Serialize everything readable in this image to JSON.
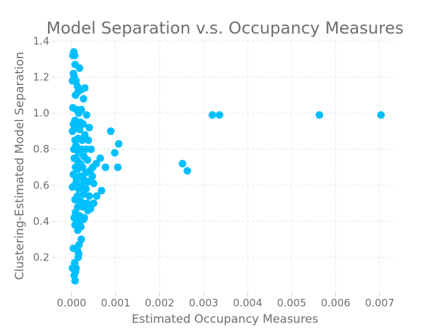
{
  "chart_data": {
    "type": "scatter",
    "title": "Model Separation v.s. Occupancy Measures",
    "xlabel": "Estimated Occupancy Measures",
    "ylabel": "Clustering-Estimated Model Separation",
    "xlim": [
      -0.00038,
      0.00735
    ],
    "ylim": [
      0.0,
      1.4
    ],
    "xticks": [
      0.0,
      0.001,
      0.002,
      0.003,
      0.004,
      0.005,
      0.006,
      0.007
    ],
    "xtick_labels": [
      "0.000",
      "0.001",
      "0.002",
      "0.003",
      "0.004",
      "0.005",
      "0.006",
      "0.007"
    ],
    "yticks": [
      0.2,
      0.4,
      0.6,
      0.8,
      1.0,
      1.2,
      1.4
    ],
    "ytick_labels": [
      "0.2",
      "0.4",
      "0.6",
      "0.8",
      "1.0",
      "1.2",
      "1.4"
    ],
    "grid": true,
    "marker_color": "#00bfff",
    "series": [
      {
        "name": "",
        "points": [
          [
            5e-05,
            1.34
          ],
          [
            7e-05,
            1.32
          ],
          [
            3e-05,
            1.32
          ],
          [
            8e-05,
            1.27
          ],
          [
            0.00018,
            1.25
          ],
          [
            4e-05,
            1.22
          ],
          [
            6e-05,
            1.2
          ],
          [
            0.0001,
            1.18
          ],
          [
            2e-05,
            1.18
          ],
          [
            0.00013,
            1.15
          ],
          [
            0.00015,
            1.12
          ],
          [
            0.0003,
            1.14
          ],
          [
            0.00021,
            1.13
          ],
          [
            9e-05,
            1.1
          ],
          [
            0.00027,
            1.08
          ],
          [
            3e-05,
            1.03
          ],
          [
            0.00011,
            1.02
          ],
          [
            0.00022,
            1.02
          ],
          [
            0.00016,
            1.0
          ],
          [
            0.00034,
            0.99
          ],
          [
            8e-05,
            0.96
          ],
          [
            0.0002,
            0.95
          ],
          [
            4e-05,
            0.94
          ],
          [
            0.00012,
            0.93
          ],
          [
            0.00026,
            0.94
          ],
          [
            7e-05,
            0.92
          ],
          [
            0.00018,
            0.91
          ],
          [
            0.0004,
            0.92
          ],
          [
            2e-05,
            0.9
          ],
          [
            0.0003,
            0.88
          ],
          [
            0.00015,
            0.86
          ],
          [
            8e-05,
            0.85
          ],
          [
            0.00024,
            0.85
          ],
          [
            0.00038,
            0.85
          ],
          [
            0.0001,
            0.82
          ],
          [
            0.00022,
            0.8
          ],
          [
            5e-05,
            0.8
          ],
          [
            0.00033,
            0.8
          ],
          [
            0.00044,
            0.8
          ],
          [
            0.00016,
            0.78
          ],
          [
            0.00028,
            0.76
          ],
          [
            0.00012,
            0.74
          ],
          [
            6e-05,
            0.75
          ],
          [
            0.0002,
            0.72
          ],
          [
            0.00036,
            0.74
          ],
          [
            0.00065,
            0.75
          ],
          [
            0.00048,
            0.7
          ],
          [
            9e-05,
            0.7
          ],
          [
            0.00025,
            0.7
          ],
          [
            0.00014,
            0.69
          ],
          [
            0.00042,
            0.68
          ],
          [
            0.00032,
            0.67
          ],
          [
            0.00056,
            0.72
          ],
          [
            4e-05,
            0.66
          ],
          [
            0.00019,
            0.65
          ],
          [
            0.00047,
            0.65
          ],
          [
            0.00011,
            0.63
          ],
          [
            0.00028,
            0.63
          ],
          [
            0.00037,
            0.62
          ],
          [
            7e-05,
            0.6
          ],
          [
            0.00023,
            0.6
          ],
          [
            0.0005,
            0.61
          ],
          [
            0.00016,
            0.58
          ],
          [
            0.00033,
            0.58
          ],
          [
            2e-05,
            0.59
          ],
          [
            0.00027,
            0.55
          ],
          [
            0.00068,
            0.57
          ],
          [
            0.00013,
            0.54
          ],
          [
            0.0004,
            0.54
          ],
          [
            0.00057,
            0.54
          ],
          [
            8e-05,
            0.52
          ],
          [
            0.00021,
            0.51
          ],
          [
            0.00035,
            0.5
          ],
          [
            0.0005,
            0.5
          ],
          [
            0.00014,
            0.48
          ],
          [
            0.00025,
            0.48
          ],
          [
            0.00043,
            0.47
          ],
          [
            9e-05,
            0.45
          ],
          [
            0.00037,
            0.46
          ],
          [
            0.00018,
            0.43
          ],
          [
            0.00029,
            0.42
          ],
          [
            6e-05,
            0.42
          ],
          [
            0.00016,
            0.4
          ],
          [
            0.00027,
            0.41
          ],
          [
            8e-05,
            0.38
          ],
          [
            0.00021,
            0.37
          ],
          [
            0.00014,
            0.35
          ],
          [
            0.00089,
            0.9
          ],
          [
            0.00107,
            0.83
          ],
          [
            0.00098,
            0.78
          ],
          [
            0.00077,
            0.7
          ],
          [
            0.00105,
            0.7
          ],
          [
            0.00252,
            0.72
          ],
          [
            0.00263,
            0.68
          ],
          [
            0.0032,
            0.99
          ],
          [
            0.00336,
            0.99
          ],
          [
            0.00563,
            0.99
          ],
          [
            0.00703,
            0.99
          ],
          [
            0.00022,
            0.3
          ],
          [
            0.00017,
            0.27
          ],
          [
            4e-05,
            0.25
          ],
          [
            0.00013,
            0.24
          ],
          [
            0.00016,
            0.22
          ],
          [
            0.00015,
            0.2
          ],
          [
            7e-05,
            0.17
          ],
          [
            0.0001,
            0.14
          ],
          [
            2e-05,
            0.14
          ],
          [
            9e-05,
            0.12
          ],
          [
            6e-05,
            0.1
          ],
          [
            8e-05,
            0.07
          ]
        ]
      }
    ]
  }
}
